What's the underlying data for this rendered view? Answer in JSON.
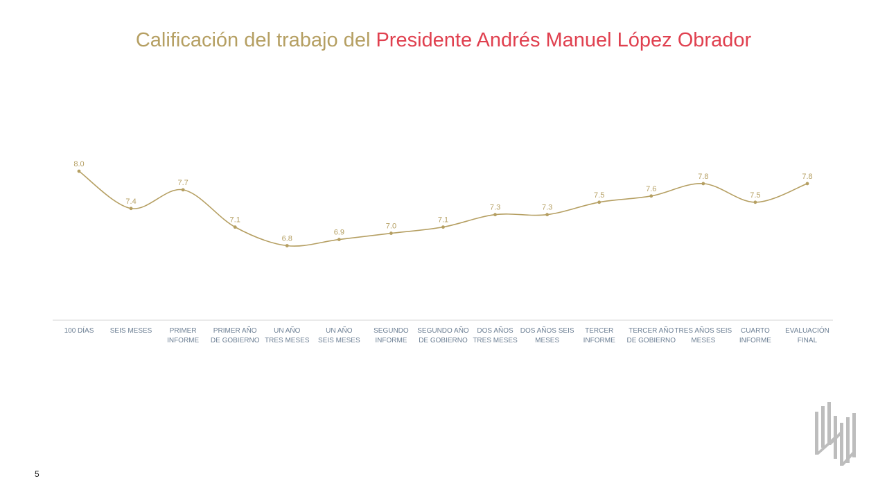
{
  "title": {
    "part1": "Calificación del trabajo del",
    "part2": "Presidente Andrés Manuel López Obrador"
  },
  "page_number": "5",
  "colors": {
    "gold": "#b59f62",
    "red": "#e0404f",
    "axis_text": "#6b7e93",
    "axis_line": "#d6d6d6",
    "logo": "#bdbdbd"
  },
  "chart_data": {
    "type": "line",
    "title": "Calificación del trabajo del Presidente Andrés Manuel López Obrador",
    "categories": [
      [
        "100 DÍAS"
      ],
      [
        "SEIS MESES"
      ],
      [
        "PRIMER",
        "INFORME"
      ],
      [
        "PRIMER AÑO",
        "DE GOBIERNO"
      ],
      [
        "UN AÑO",
        "TRES MESES"
      ],
      [
        "UN AÑO",
        "SEIS MESES"
      ],
      [
        "SEGUNDO",
        "INFORME"
      ],
      [
        "SEGUNDO AÑO",
        "DE GOBIERNO"
      ],
      [
        "DOS AÑOS",
        "TRES MESES"
      ],
      [
        "DOS AÑOS SEIS",
        "MESES"
      ],
      [
        "TERCER",
        "INFORME"
      ],
      [
        "TERCER AÑO",
        "DE GOBIERNO"
      ],
      [
        "TRES AÑOS SEIS",
        "MESES"
      ],
      [
        "CUARTO",
        "INFORME"
      ],
      [
        "EVALUACIÓN",
        "FINAL"
      ]
    ],
    "values": [
      8.0,
      7.4,
      7.7,
      7.1,
      6.8,
      6.9,
      7.0,
      7.1,
      7.3,
      7.3,
      7.5,
      7.6,
      7.8,
      7.5,
      7.8
    ],
    "data_labels": [
      "8.0",
      "7.4",
      "7.7",
      "7.1",
      "6.8",
      "6.9",
      "7.0",
      "7.1",
      "7.3",
      "7.3",
      "7.5",
      "7.6",
      "7.8",
      "7.5",
      "7.8"
    ],
    "xlabel": "",
    "ylabel": "",
    "ylim": [
      5.6,
      8.0
    ],
    "grid": false,
    "legend": "none"
  }
}
